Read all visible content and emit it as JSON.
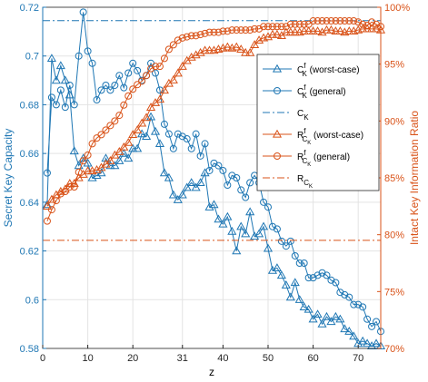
{
  "colors": {
    "blue": "#1f77b4",
    "orange": "#d95319",
    "grid": "#e3e3e3",
    "axis": "#000000"
  },
  "chart_data": {
    "type": "line",
    "title": "",
    "xlabel": "z",
    "ylabel_left": "Secret Key Capacity",
    "ylabel_right": "Intact Key Information Ratio",
    "xlim": [
      0,
      75
    ],
    "ylim_left": [
      0.58,
      0.72
    ],
    "ylim_right": [
      70,
      100
    ],
    "grid": true,
    "legend_position": "right",
    "x_ticks": [
      "0",
      "10",
      "20",
      "31",
      "40",
      "50",
      "60",
      "70"
    ],
    "x_tick_values": [
      0,
      10,
      20,
      31,
      40,
      50,
      60,
      70
    ],
    "y_left_ticks": [
      "0.58",
      "0.6",
      "0.62",
      "0.64",
      "0.66",
      "0.68",
      "0.7",
      "0.72"
    ],
    "y_left_tick_values": [
      0.58,
      0.6,
      0.62,
      0.64,
      0.66,
      0.68,
      0.7,
      0.72
    ],
    "y_right_ticks": [
      "70%",
      "75%",
      "80%",
      "85%",
      "90%",
      "95%",
      "100%"
    ],
    "y_right_tick_values": [
      70,
      75,
      80,
      85,
      90,
      95,
      100
    ],
    "legend": [
      {
        "text": "C",
        "sup": "f",
        "sub": "K",
        "suffix": " (worst-case)"
      },
      {
        "text": "C",
        "sup": "f",
        "sub": "K",
        "suffix": " (general)"
      },
      {
        "text": "C",
        "sup": "",
        "sub": "K",
        "suffix": ""
      },
      {
        "text": "R",
        "sup": "f",
        "sub": "C",
        "subsub": "K",
        "suffix": " (worst-case)"
      },
      {
        "text": "R",
        "sup": "f",
        "sub": "C",
        "subsub": "K",
        "suffix": " (general)"
      },
      {
        "text": "R",
        "sup": "",
        "sub": "C",
        "subsub": "K",
        "suffix": ""
      }
    ],
    "series": [
      {
        "id": "ck_worst",
        "axis": "left",
        "color": "blue",
        "marker": "triangle",
        "dash": "solid",
        "x": [
          1,
          2,
          3,
          4,
          5,
          6,
          7,
          8,
          9,
          10,
          11,
          12,
          13,
          14,
          15,
          16,
          17,
          18,
          19,
          20,
          21,
          22,
          23,
          24,
          25,
          26,
          27,
          28,
          29,
          30,
          31,
          32,
          33,
          34,
          35,
          36,
          37,
          38,
          39,
          40,
          41,
          42,
          43,
          44,
          45,
          46,
          47,
          48,
          49,
          50,
          51,
          52,
          53,
          54,
          55,
          56,
          57,
          58,
          59,
          60,
          61,
          62,
          63,
          64,
          65,
          66,
          67,
          68,
          69,
          70,
          71,
          72,
          73,
          74,
          75
        ],
        "y": [
          0.639,
          0.699,
          0.69,
          0.696,
          0.69,
          0.684,
          0.661,
          0.655,
          0.658,
          0.656,
          0.65,
          0.651,
          0.652,
          0.658,
          0.655,
          0.655,
          0.657,
          0.66,
          0.658,
          0.662,
          0.662,
          0.668,
          0.667,
          0.675,
          0.669,
          0.664,
          0.652,
          0.65,
          0.643,
          0.641,
          0.643,
          0.646,
          0.648,
          0.646,
          0.648,
          0.652,
          0.638,
          0.639,
          0.633,
          0.631,
          0.634,
          0.628,
          0.62,
          0.63,
          0.627,
          0.636,
          0.626,
          0.627,
          0.63,
          0.621,
          0.612,
          0.613,
          0.61,
          0.606,
          0.601,
          0.607,
          0.6,
          0.597,
          0.596,
          0.592,
          0.594,
          0.59,
          0.593,
          0.591,
          0.593,
          0.592,
          0.588,
          0.587,
          0.585,
          0.582,
          0.583,
          0.582,
          0.581,
          0.582,
          0.581
        ]
      },
      {
        "id": "ck_general",
        "axis": "left",
        "color": "blue",
        "marker": "circle",
        "dash": "solid",
        "x": [
          1,
          2,
          3,
          4,
          5,
          6,
          7,
          8,
          9,
          10,
          11,
          12,
          13,
          14,
          15,
          16,
          17,
          18,
          19,
          20,
          21,
          22,
          23,
          24,
          25,
          26,
          27,
          28,
          29,
          30,
          31,
          32,
          33,
          34,
          35,
          36,
          37,
          38,
          39,
          40,
          41,
          42,
          43,
          44,
          45,
          46,
          47,
          48,
          49,
          50,
          51,
          52,
          53,
          54,
          55,
          56,
          57,
          58,
          59,
          60,
          61,
          62,
          63,
          64,
          65,
          66,
          67,
          68,
          69,
          70,
          71,
          72,
          73,
          74,
          75
        ],
        "y": [
          0.652,
          0.683,
          0.68,
          0.686,
          0.679,
          0.688,
          0.68,
          0.7,
          0.718,
          0.702,
          0.697,
          0.682,
          0.686,
          0.688,
          0.686,
          0.688,
          0.692,
          0.687,
          0.693,
          0.697,
          0.694,
          0.69,
          0.692,
          0.697,
          0.693,
          0.686,
          0.672,
          0.668,
          0.662,
          0.668,
          0.667,
          0.666,
          0.662,
          0.668,
          0.659,
          0.664,
          0.653,
          0.656,
          0.655,
          0.653,
          0.647,
          0.651,
          0.65,
          0.645,
          0.642,
          0.648,
          0.651,
          0.648,
          0.64,
          0.638,
          0.63,
          0.629,
          0.624,
          0.622,
          0.624,
          0.618,
          0.615,
          0.615,
          0.609,
          0.609,
          0.61,
          0.611,
          0.61,
          0.608,
          0.607,
          0.603,
          0.602,
          0.601,
          0.598,
          0.598,
          0.597,
          0.592,
          0.589,
          0.591,
          0.587
        ]
      },
      {
        "id": "ck_line",
        "axis": "left",
        "color": "blue",
        "marker": "none",
        "dash": "dashdot",
        "x": [
          0,
          75
        ],
        "y": [
          0.7145,
          0.7145
        ]
      },
      {
        "id": "r_worst",
        "axis": "right",
        "color": "orange",
        "marker": "triangle",
        "dash": "solid",
        "x": [
          1,
          2,
          3,
          4,
          5,
          6,
          7,
          8,
          9,
          10,
          11,
          12,
          13,
          14,
          15,
          16,
          17,
          18,
          19,
          20,
          21,
          22,
          23,
          24,
          25,
          26,
          27,
          28,
          29,
          30,
          31,
          32,
          33,
          34,
          35,
          36,
          37,
          38,
          39,
          40,
          41,
          42,
          43,
          44,
          45,
          46,
          47,
          48,
          49,
          50,
          51,
          52,
          53,
          54,
          55,
          56,
          57,
          58,
          59,
          60,
          61,
          62,
          63,
          64,
          65,
          66,
          67,
          68,
          69,
          70,
          71,
          72,
          73,
          74,
          75
        ],
        "y": [
          82.5,
          83.1,
          83.5,
          83.8,
          84.0,
          84.5,
          84.5,
          85.0,
          85.3,
          85.6,
          85.6,
          85.7,
          85.9,
          86.2,
          86.5,
          87.0,
          87.3,
          87.7,
          88.1,
          88.8,
          89.2,
          89.8,
          90.3,
          91.2,
          91.6,
          91.9,
          92.7,
          93.3,
          93.6,
          94.2,
          94.8,
          95.3,
          95.6,
          95.8,
          96.0,
          96.2,
          96.2,
          96.2,
          96.3,
          96.4,
          96.5,
          96.4,
          96.5,
          96.3,
          96.0,
          96.0,
          96.7,
          97.1,
          97.3,
          97.4,
          97.6,
          97.6,
          97.5,
          97.8,
          97.8,
          97.8,
          97.8,
          97.9,
          97.9,
          97.9,
          97.9,
          97.8,
          98.0,
          98.0,
          97.9,
          97.9,
          97.8,
          97.9,
          97.9,
          98.0,
          98.1,
          98.1,
          98.1,
          98.1,
          98.0
        ]
      },
      {
        "id": "r_general",
        "axis": "right",
        "color": "orange",
        "marker": "circle",
        "dash": "solid",
        "x": [
          1,
          2,
          3,
          4,
          5,
          6,
          7,
          8,
          9,
          10,
          11,
          12,
          13,
          14,
          15,
          16,
          17,
          18,
          19,
          20,
          21,
          22,
          23,
          24,
          25,
          26,
          27,
          28,
          29,
          30,
          31,
          32,
          33,
          34,
          35,
          36,
          37,
          38,
          39,
          40,
          41,
          42,
          43,
          44,
          45,
          46,
          47,
          48,
          49,
          50,
          51,
          52,
          53,
          54,
          55,
          56,
          57,
          58,
          59,
          60,
          61,
          62,
          63,
          64,
          65,
          66,
          67,
          68,
          69,
          70,
          71,
          72,
          73,
          74,
          75
        ],
        "y": [
          81.2,
          82.2,
          83.0,
          83.6,
          83.8,
          84.2,
          84.2,
          85.5,
          86.5,
          87.0,
          88.0,
          88.5,
          88.8,
          89.2,
          89.6,
          90.0,
          90.5,
          91.4,
          92.2,
          92.8,
          93.2,
          93.5,
          94.0,
          94.6,
          94.8,
          94.8,
          95.5,
          96.3,
          96.7,
          97.1,
          97.3,
          97.4,
          97.5,
          97.5,
          97.6,
          97.7,
          97.8,
          97.8,
          97.8,
          97.9,
          97.9,
          98.0,
          98.0,
          98.0,
          98.0,
          98.0,
          98.1,
          98.1,
          98.3,
          98.3,
          98.3,
          98.3,
          98.3,
          98.3,
          98.5,
          98.5,
          98.5,
          98.5,
          98.5,
          98.8,
          98.8,
          98.8,
          98.8,
          98.8,
          98.8,
          98.8,
          98.8,
          98.8,
          98.8,
          98.7,
          98.5,
          98.4,
          98.7,
          98.5,
          98.3
        ]
      },
      {
        "id": "r_line",
        "axis": "right",
        "color": "orange",
        "marker": "none",
        "dash": "dashdot",
        "x": [
          0,
          75
        ],
        "y": [
          79.5,
          79.5
        ]
      }
    ]
  }
}
